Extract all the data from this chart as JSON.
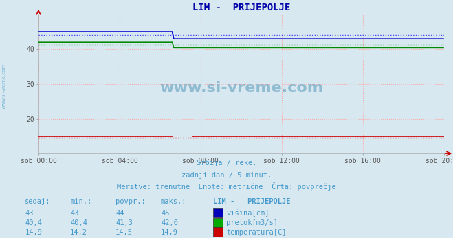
{
  "title": "LIM -  PRIJEPOLJE",
  "bg_color": "#d8e8f0",
  "plot_bg_color": "#d8e8f0",
  "grid_color": "#ffaaaa",
  "x_ticks_labels": [
    "sob 00:00",
    "sob 04:00",
    "sob 08:00",
    "sob 12:00",
    "sob 16:00",
    "sob 20:00"
  ],
  "x_ticks_pos": [
    0,
    288,
    576,
    864,
    1152,
    1440
  ],
  "ylim": [
    10,
    50
  ],
  "yticks": [
    20,
    30,
    40
  ],
  "total_minutes": 1440,
  "lines": {
    "visina": {
      "color": "#0000cc",
      "avg_color": "#4444ff",
      "value_before": 45,
      "value_after": 43,
      "drop_at": 480,
      "avg": 44
    },
    "pretok": {
      "color": "#008800",
      "avg_color": "#00aa00",
      "value_before": 42.0,
      "value_after": 40.4,
      "drop_at": 480,
      "avg": 41.3
    },
    "temp": {
      "color": "#cc0000",
      "avg_color": "#ff0000",
      "value_before": 14.9,
      "value_after": 14.9,
      "drop_at": 540,
      "avg": 14.5,
      "gap_start": 480,
      "gap_end": 540
    }
  },
  "subtitle1": "Srbija / reke.",
  "subtitle2": "zadnji dan / 5 minut.",
  "subtitle3": "Meritve: trenutne  Enote: metrične  Črta: povprečje",
  "table_header": [
    "sedaj:",
    "min.:",
    "povpr.:",
    "maks.:",
    "LIM -   PRIJEPOLJE"
  ],
  "table_rows": [
    [
      "43",
      "43",
      "44",
      "45",
      "#0000bb",
      "višina[cm]"
    ],
    [
      "40,4",
      "40,4",
      "41,3",
      "42,0",
      "#00aa00",
      "pretok[m3/s]"
    ],
    [
      "14,9",
      "14,2",
      "14,5",
      "14,9",
      "#cc0000",
      "temperatura[C]"
    ]
  ],
  "text_color": "#4499cc",
  "title_color": "#0000aa",
  "watermark": "www.si-vreme.com",
  "left_label": "www.si-vreme.com"
}
